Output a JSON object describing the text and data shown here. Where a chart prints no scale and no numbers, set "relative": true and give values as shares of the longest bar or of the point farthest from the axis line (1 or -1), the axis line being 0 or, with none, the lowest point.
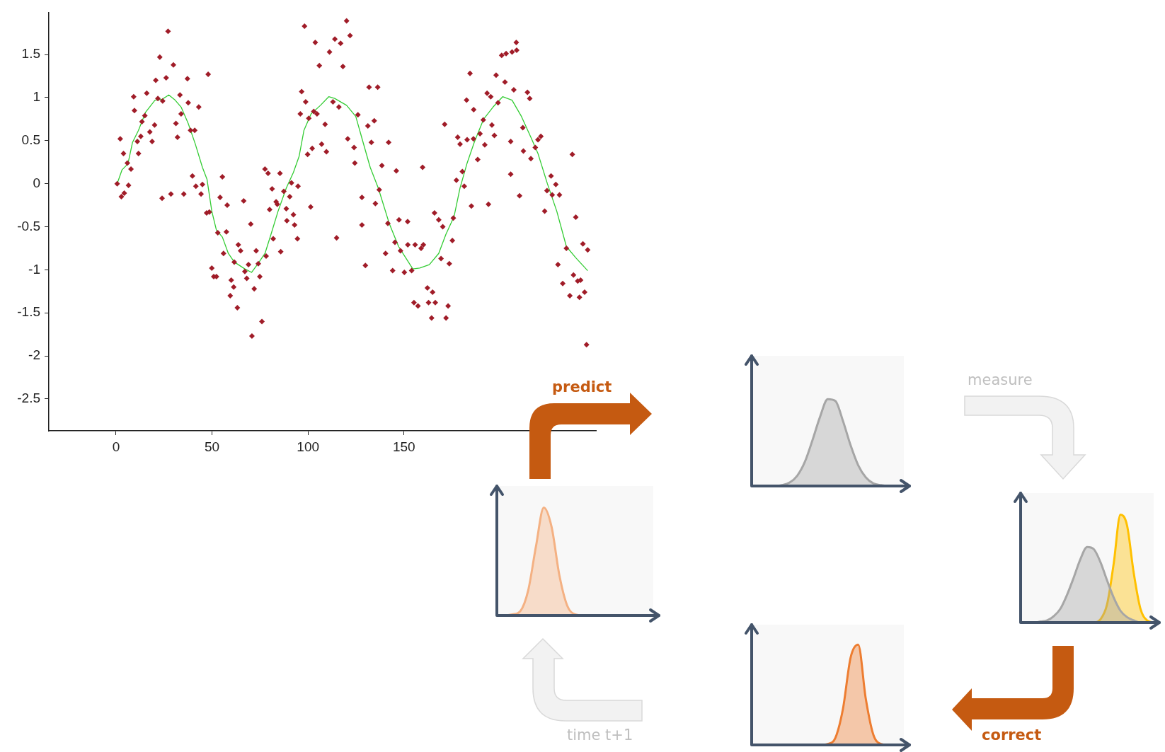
{
  "chart_data": [
    {
      "type": "scatter",
      "xlim": [
        -35,
        250
      ],
      "ylim": [
        -2.87,
        1.99
      ],
      "xticks": [
        0,
        50,
        100,
        150
      ],
      "yticks": [
        -2.5,
        -2,
        -1.5,
        -1,
        -0.5,
        0,
        0.5,
        1,
        1.5
      ],
      "grid": false,
      "legend": false,
      "marker": "diamond",
      "series": [
        {
          "type": "scatter",
          "color": "#a01c28",
          "x": [
            0.6,
            2.2,
            2.8,
            4.3,
            3.9,
            5.9,
            6.5,
            7.8,
            9.2,
            9.6,
            11.1,
            11.7,
            12.9,
            13.5,
            15,
            16,
            17.6,
            18.8,
            20.1,
            20.7,
            21.8,
            22.8,
            24,
            24.3,
            26.1,
            27.1,
            28.6,
            29.9,
            31.2,
            32,
            33.3,
            33.9,
            35.3,
            37.2,
            37.6,
            38.8,
            39.8,
            41,
            41.6,
            43.1,
            44.3,
            45,
            47.2,
            48,
            48.6,
            49.9,
            50.9,
            52.3,
            53,
            54.2,
            55.4,
            56,
            57.5,
            57.9,
            59.5,
            60,
            61.3,
            61.6,
            63.2,
            63.7,
            64.9,
            66.5,
            67.1,
            68.1,
            69,
            70.2,
            70.8,
            72,
            73,
            74.1,
            74.9,
            76,
            77.6,
            79.2,
            78.2,
            80,
            81.3,
            81.9,
            83.4,
            84,
            85.4,
            85.8,
            87.4,
            88.7,
            89,
            90.5,
            91.4,
            92.4,
            93,
            94.5,
            94.8,
            96,
            96.7,
            98.2,
            98.8,
            99.8,
            100.4,
            101.4,
            102.2,
            103,
            103.8,
            104.7,
            105.9,
            107.1,
            108.9,
            109.6,
            111.2,
            113,
            114,
            114.9,
            120.1,
            117,
            121.9,
            118.2,
            131.8,
            136.3,
            116.1,
            126,
            131.2,
            134.5,
            120.7,
            124,
            133,
            142,
            124.4,
            138.5,
            146,
            159.7,
            137.1,
            128.1,
            135.1,
            128.1,
            141.6,
            147.4,
            151.9,
            145.3,
            152,
            148.2,
            140.4,
            129.9,
            155.8,
            158.9,
            160.1,
            144.1,
            150.2,
            154,
            165.9,
            168.1,
            170.2,
            175.7,
            175.2,
            169.3,
            173.6,
            162.2,
            164.9,
            155.2,
            157.3,
            162.8,
            166.3,
            173,
            164.4,
            171.9,
            177.3,
            180.4,
            181.4,
            185.1,
            194,
            188.4,
            178,
            179.2,
            182.9,
            186.2,
            189.6,
            192.1,
            191.3,
            195.8,
            197.1,
            171.2,
            182.6,
            186.3,
            184.4,
            193.3,
            195.2,
            199,
            198,
            202.6,
            200.9,
            203.2,
            206.3,
            208.7,
            208.5,
            207.2,
            214.3,
            215.5,
            211.9,
            205.6,
            212.2,
            216.1,
            218.4,
            219.8,
            221.3,
            205.6,
            210.2,
            223.3,
            226.6,
            229.1,
            224.5,
            227.2,
            231,
            237.7,
            239.5,
            234.6,
            243.2,
            245.7,
            230.2,
            238.3,
            232.7,
            240.5,
            242,
            236.4,
            241.4,
            244.1,
            245.1
          ],
          "values": [
            0,
            0.52,
            -0.15,
            -0.11,
            0.35,
            0.24,
            -0.02,
            0.17,
            1.01,
            0.85,
            0.49,
            0.35,
            0.55,
            0.72,
            0.79,
            1.05,
            0.6,
            0.49,
            0.68,
            1.2,
            0.99,
            1.47,
            -0.17,
            0.96,
            1.23,
            1.77,
            -0.12,
            1.38,
            0.7,
            0.54,
            1.03,
            0.81,
            -0.12,
            1.22,
            0.94,
            0.62,
            0.09,
            0.62,
            -0.03,
            0.89,
            -0.12,
            -0.01,
            -0.34,
            1.27,
            -0.33,
            -0.98,
            -1.08,
            -1.08,
            -0.57,
            -0.16,
            0.08,
            -0.81,
            -0.56,
            -0.25,
            -1.3,
            -1.12,
            -1.2,
            -0.91,
            -1.44,
            -0.71,
            -0.78,
            -0.2,
            -1.02,
            -1.1,
            -0.94,
            -0.47,
            -1.77,
            -1.22,
            -0.78,
            -0.93,
            -1.08,
            -1.6,
            0.17,
            0.12,
            -0.84,
            -0.3,
            -0.06,
            -0.64,
            -0.21,
            -0.24,
            0.12,
            -0.79,
            -0.09,
            -0.29,
            -0.43,
            -0.15,
            0.01,
            -0.36,
            -0.48,
            -0.64,
            -0.03,
            0.81,
            1.07,
            1.83,
            0.95,
            0.34,
            0.76,
            -0.27,
            0.41,
            0.84,
            1.64,
            0.81,
            1.37,
            0.46,
            0.69,
            0.37,
            1.53,
            0.95,
            1.68,
            -0.63,
            1.89,
            1.63,
            1.72,
            1.36,
            1.12,
            1.12,
            0.89,
            0.8,
            0.67,
            0.73,
            0.52,
            0.42,
            0.48,
            0.48,
            0.24,
            0.21,
            0.15,
            0.19,
            -0.07,
            -0.16,
            -0.23,
            -0.48,
            -0.46,
            -0.42,
            -0.44,
            -0.68,
            -0.71,
            -0.78,
            -0.81,
            -0.95,
            -0.71,
            -0.75,
            -0.71,
            -1.01,
            -1.03,
            -1.01,
            -0.34,
            -0.42,
            -0.5,
            -0.4,
            -0.66,
            -0.87,
            -0.93,
            -1.21,
            -1.26,
            -1.38,
            -1.42,
            -1.38,
            -1.38,
            -1.42,
            -1.56,
            -1.56,
            0.04,
            0.14,
            -0.03,
            -0.26,
            -0.24,
            0.28,
            0.54,
            0.46,
            0.51,
            0.52,
            0.58,
            0.45,
            0.74,
            0.68,
            0.56,
            0.69,
            0.97,
            0.86,
            1.28,
            1.05,
            1.01,
            0.94,
            1.26,
            1.18,
            1.49,
            1.51,
            1.53,
            1.55,
            1.64,
            1.09,
            1.06,
            0.99,
            0.65,
            0.49,
            0.38,
            0.29,
            0.42,
            0.51,
            0.55,
            0.11,
            -0.14,
            -0.32,
            0.09,
            -0.01,
            -0.08,
            -0.13,
            -0.13,
            0.34,
            -0.39,
            -0.75,
            -0.7,
            -0.77,
            -0.94,
            -1.06,
            -1.16,
            -1.13,
            -1.12,
            -1.3,
            -1.32,
            -1.26,
            -1.87
          ]
        },
        {
          "type": "line",
          "color": "#33cc33",
          "marker": "none",
          "x": [
            0.6,
            3.1,
            6.2,
            8.6,
            11.7,
            15.4,
            20.3,
            24,
            27.5,
            30.8,
            33.9,
            37.6,
            41.3,
            45,
            47.4,
            49.9,
            52.3,
            55.4,
            58.5,
            61.6,
            67.1,
            70.6,
            73.9,
            77.6,
            80.7,
            84.4,
            88.7,
            92.4,
            95.4,
            97.9,
            101.6,
            106.5,
            110.8,
            113.9,
            120.1,
            124.9,
            128.7,
            132.4,
            136.6,
            142.3,
            147.2,
            150.9,
            154.6,
            158.2,
            163.2,
            168.1,
            171.8,
            176.1,
            179.2,
            182.9,
            186.6,
            191.5,
            196.4,
            201.4,
            206.3,
            211.2,
            216.1,
            219.8,
            224.7,
            229.6,
            234.6,
            239.5,
            245.7
          ],
          "values": [
            0,
            0.16,
            0.23,
            0.48,
            0.62,
            0.83,
            0.97,
            0.98,
            1.03,
            0.97,
            0.89,
            0.7,
            0.46,
            0.19,
            0.05,
            -0.32,
            -0.54,
            -0.62,
            -0.81,
            -0.91,
            -0.99,
            -1.03,
            -0.93,
            -0.81,
            -0.59,
            -0.32,
            -0.05,
            0.13,
            0.32,
            0.62,
            0.81,
            0.91,
            1.01,
            0.99,
            0.91,
            0.78,
            0.48,
            0.19,
            -0.05,
            -0.46,
            -0.73,
            -0.86,
            -0.99,
            -0.98,
            -0.94,
            -0.81,
            -0.59,
            -0.38,
            -0.05,
            0.24,
            0.48,
            0.75,
            0.89,
            1.01,
            0.97,
            0.78,
            0.54,
            0.35,
            0,
            -0.32,
            -0.73,
            -0.86,
            -1.01
          ]
        }
      ]
    },
    {
      "type": "area",
      "relative": true,
      "tick_labels": false,
      "legend": false,
      "categories": [
        null,
        null,
        null,
        null,
        null,
        null,
        null,
        null,
        null,
        null,
        null,
        null,
        null,
        null,
        null,
        null,
        null,
        null,
        null,
        null,
        null
      ],
      "series": [
        {
          "color": "#f4b183",
          "values": [
            0,
            0,
            0.01,
            0.04,
            0.23,
            0.64,
            1,
            0.82,
            0.37,
            0.09,
            0.01,
            0,
            0,
            0,
            0,
            0,
            0,
            0,
            0,
            0,
            0
          ]
        }
      ]
    },
    {
      "type": "area",
      "relative": true,
      "tick_labels": false,
      "legend": false,
      "categories": [
        null,
        null,
        null,
        null,
        null,
        null,
        null,
        null,
        null,
        null,
        null,
        null,
        null,
        null,
        null,
        null,
        null,
        null,
        null,
        null,
        null
      ],
      "series": [
        {
          "color": "#a6a6a6",
          "values": [
            0,
            0,
            0,
            0,
            0.01,
            0.04,
            0.12,
            0.28,
            0.53,
            0.8,
            1,
            0.98,
            0.75,
            0.47,
            0.24,
            0.1,
            0.03,
            0.01,
            0,
            0,
            0
          ]
        }
      ]
    },
    {
      "type": "area",
      "relative": true,
      "tick_labels": false,
      "legend": false,
      "categories": [
        null,
        null,
        null,
        null,
        null,
        null,
        null,
        null,
        null,
        null,
        null,
        null,
        null,
        null,
        null,
        null,
        null,
        null,
        null,
        null,
        null
      ],
      "series": [
        {
          "color": "#a6a6a6",
          "values": [
            0,
            0,
            0,
            0.01,
            0.02,
            0.06,
            0.13,
            0.26,
            0.42,
            0.59,
            0.7,
            0.68,
            0.56,
            0.39,
            0.23,
            0.11,
            0.05,
            0.02,
            0,
            0,
            0
          ]
        },
        {
          "color": "#ffc000",
          "values": [
            0,
            0,
            0,
            0,
            0,
            0,
            0,
            0,
            0,
            0,
            0,
            0,
            0.03,
            0.17,
            0.55,
            1,
            0.9,
            0.46,
            0.13,
            0.02,
            0
          ]
        }
      ]
    },
    {
      "type": "area",
      "relative": true,
      "tick_labels": false,
      "legend": false,
      "categories": [
        null,
        null,
        null,
        null,
        null,
        null,
        null,
        null,
        null,
        null,
        null,
        null,
        null,
        null,
        null,
        null,
        null,
        null,
        null,
        null,
        null
      ],
      "series": [
        {
          "color": "#ed7d31",
          "values": [
            0,
            0,
            0,
            0,
            0,
            0,
            0,
            0,
            0,
            0,
            0.01,
            0.07,
            0.36,
            0.87,
            1,
            0.46,
            0.1,
            0.01,
            0,
            0,
            0
          ]
        }
      ]
    },
    {
      "type": "other",
      "annotations": [
        "predict",
        "measure",
        "correct",
        "time t+1"
      ]
    }
  ]
}
